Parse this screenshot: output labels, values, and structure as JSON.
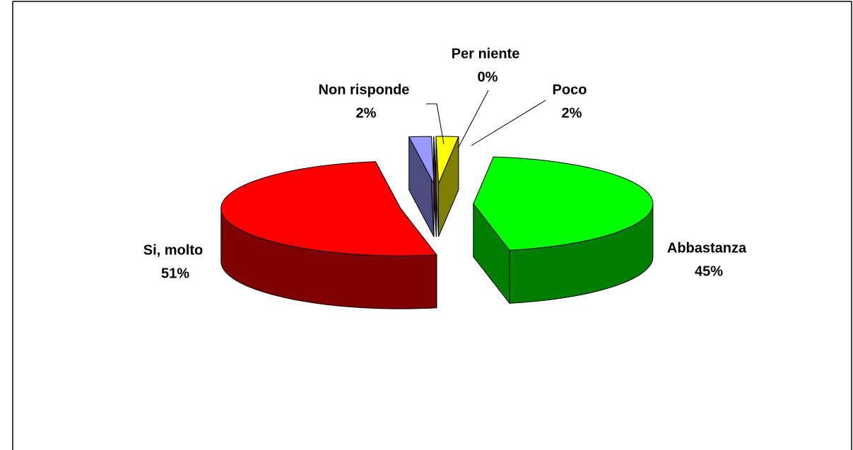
{
  "chart_data": {
    "type": "pie",
    "categories": [
      "Si, molto",
      "Non risponde",
      "Per niente",
      "Poco",
      "Abbastanza"
    ],
    "values": [
      51,
      2,
      0,
      2,
      45
    ],
    "value_labels": [
      "51%",
      "2%",
      "0%",
      "2%",
      "45%"
    ],
    "colors": [
      "#ff0000",
      "#9999ff",
      "#993366",
      "#ffff00",
      "#00ff00"
    ]
  }
}
